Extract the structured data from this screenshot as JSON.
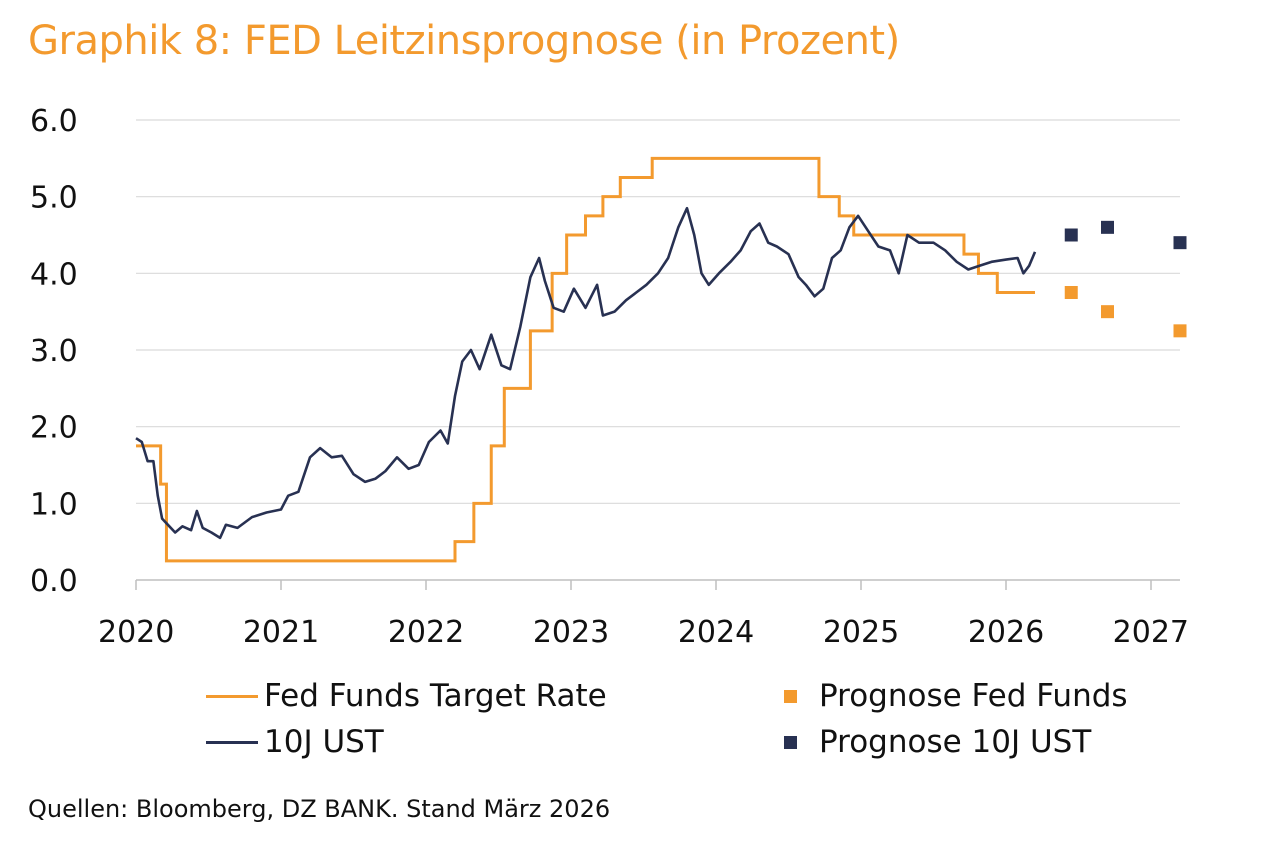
{
  "title": "Graphik 8: FED Leitzinsprognose (in Prozent)",
  "source": "Quellen: Bloomberg, DZ BANK. Stand März 2026",
  "colors": {
    "accent": "#F39A2E",
    "navy": "#283152",
    "grid": "#d9d9d9"
  },
  "chart_data": {
    "type": "line",
    "title": "Graphik 8: FED Leitzinsprognose (in Prozent)",
    "xlabel": "",
    "ylabel": "",
    "xlim": [
      2020.0,
      2027.2
    ],
    "ylim": [
      0,
      6
    ],
    "grid": true,
    "legend_position": "bottom",
    "x_ticks": [
      "2020",
      "2021",
      "2022",
      "2023",
      "2024",
      "2025",
      "2026",
      "2027"
    ],
    "y_ticks": [
      "0.0",
      "1.0",
      "2.0",
      "3.0",
      "4.0",
      "5.0",
      "6.0"
    ],
    "series": [
      {
        "name": "Fed Funds Target Rate",
        "kind": "step",
        "color": "#F39A2E",
        "points": [
          [
            2020.0,
            1.75
          ],
          [
            2020.17,
            1.25
          ],
          [
            2020.21,
            0.25
          ],
          [
            2022.2,
            0.5
          ],
          [
            2022.33,
            1.0
          ],
          [
            2022.45,
            1.75
          ],
          [
            2022.54,
            2.5
          ],
          [
            2022.72,
            3.25
          ],
          [
            2022.87,
            4.0
          ],
          [
            2022.97,
            4.5
          ],
          [
            2023.1,
            4.75
          ],
          [
            2023.22,
            5.0
          ],
          [
            2023.34,
            5.25
          ],
          [
            2023.56,
            5.5
          ],
          [
            2024.71,
            5.0
          ],
          [
            2024.85,
            4.75
          ],
          [
            2024.95,
            4.5
          ],
          [
            2025.71,
            4.25
          ],
          [
            2025.81,
            4.0
          ],
          [
            2025.94,
            3.75
          ],
          [
            2026.2,
            3.75
          ]
        ]
      },
      {
        "name": "10J UST",
        "kind": "line",
        "color": "#283152",
        "points": [
          [
            2020.0,
            1.85
          ],
          [
            2020.04,
            1.8
          ],
          [
            2020.08,
            1.55
          ],
          [
            2020.12,
            1.55
          ],
          [
            2020.15,
            1.1
          ],
          [
            2020.18,
            0.8
          ],
          [
            2020.22,
            0.72
          ],
          [
            2020.27,
            0.62
          ],
          [
            2020.32,
            0.7
          ],
          [
            2020.38,
            0.65
          ],
          [
            2020.42,
            0.9
          ],
          [
            2020.46,
            0.68
          ],
          [
            2020.52,
            0.62
          ],
          [
            2020.58,
            0.55
          ],
          [
            2020.62,
            0.72
          ],
          [
            2020.7,
            0.68
          ],
          [
            2020.8,
            0.82
          ],
          [
            2020.9,
            0.88
          ],
          [
            2021.0,
            0.92
          ],
          [
            2021.05,
            1.1
          ],
          [
            2021.12,
            1.15
          ],
          [
            2021.2,
            1.6
          ],
          [
            2021.27,
            1.72
          ],
          [
            2021.35,
            1.6
          ],
          [
            2021.42,
            1.62
          ],
          [
            2021.5,
            1.38
          ],
          [
            2021.58,
            1.28
          ],
          [
            2021.65,
            1.32
          ],
          [
            2021.72,
            1.42
          ],
          [
            2021.8,
            1.6
          ],
          [
            2021.88,
            1.45
          ],
          [
            2021.95,
            1.5
          ],
          [
            2022.02,
            1.8
          ],
          [
            2022.1,
            1.95
          ],
          [
            2022.15,
            1.78
          ],
          [
            2022.2,
            2.4
          ],
          [
            2022.25,
            2.85
          ],
          [
            2022.31,
            3.0
          ],
          [
            2022.37,
            2.75
          ],
          [
            2022.45,
            3.2
          ],
          [
            2022.52,
            2.8
          ],
          [
            2022.58,
            2.75
          ],
          [
            2022.65,
            3.3
          ],
          [
            2022.72,
            3.95
          ],
          [
            2022.78,
            4.2
          ],
          [
            2022.82,
            3.9
          ],
          [
            2022.88,
            3.55
          ],
          [
            2022.95,
            3.5
          ],
          [
            2023.02,
            3.8
          ],
          [
            2023.1,
            3.55
          ],
          [
            2023.18,
            3.85
          ],
          [
            2023.22,
            3.45
          ],
          [
            2023.3,
            3.5
          ],
          [
            2023.38,
            3.65
          ],
          [
            2023.45,
            3.75
          ],
          [
            2023.52,
            3.85
          ],
          [
            2023.6,
            4.0
          ],
          [
            2023.67,
            4.2
          ],
          [
            2023.74,
            4.6
          ],
          [
            2023.8,
            4.85
          ],
          [
            2023.85,
            4.5
          ],
          [
            2023.9,
            4.0
          ],
          [
            2023.95,
            3.85
          ],
          [
            2024.02,
            4.0
          ],
          [
            2024.1,
            4.15
          ],
          [
            2024.17,
            4.3
          ],
          [
            2024.24,
            4.55
          ],
          [
            2024.3,
            4.65
          ],
          [
            2024.36,
            4.4
          ],
          [
            2024.42,
            4.35
          ],
          [
            2024.5,
            4.25
          ],
          [
            2024.57,
            3.95
          ],
          [
            2024.62,
            3.85
          ],
          [
            2024.68,
            3.7
          ],
          [
            2024.74,
            3.8
          ],
          [
            2024.8,
            4.2
          ],
          [
            2024.86,
            4.3
          ],
          [
            2024.92,
            4.6
          ],
          [
            2024.98,
            4.75
          ],
          [
            2025.05,
            4.55
          ],
          [
            2025.12,
            4.35
          ],
          [
            2025.2,
            4.3
          ],
          [
            2025.26,
            4.0
          ],
          [
            2025.32,
            4.5
          ],
          [
            2025.4,
            4.4
          ],
          [
            2025.5,
            4.4
          ],
          [
            2025.58,
            4.3
          ],
          [
            2025.66,
            4.15
          ],
          [
            2025.74,
            4.05
          ],
          [
            2025.82,
            4.1
          ],
          [
            2025.9,
            4.15
          ],
          [
            2026.0,
            4.18
          ],
          [
            2026.08,
            4.2
          ],
          [
            2026.12,
            4.0
          ],
          [
            2026.16,
            4.1
          ],
          [
            2026.2,
            4.28
          ]
        ]
      },
      {
        "name": "Prognose Fed Funds",
        "kind": "marker",
        "color": "#F39A2E",
        "points": [
          [
            2026.45,
            3.75
          ],
          [
            2026.7,
            3.5
          ],
          [
            2027.2,
            3.25
          ]
        ]
      },
      {
        "name": "Prognose 10J UST",
        "kind": "marker",
        "color": "#283152",
        "points": [
          [
            2026.45,
            4.5
          ],
          [
            2026.7,
            4.6
          ],
          [
            2027.2,
            4.4
          ]
        ]
      }
    ]
  }
}
